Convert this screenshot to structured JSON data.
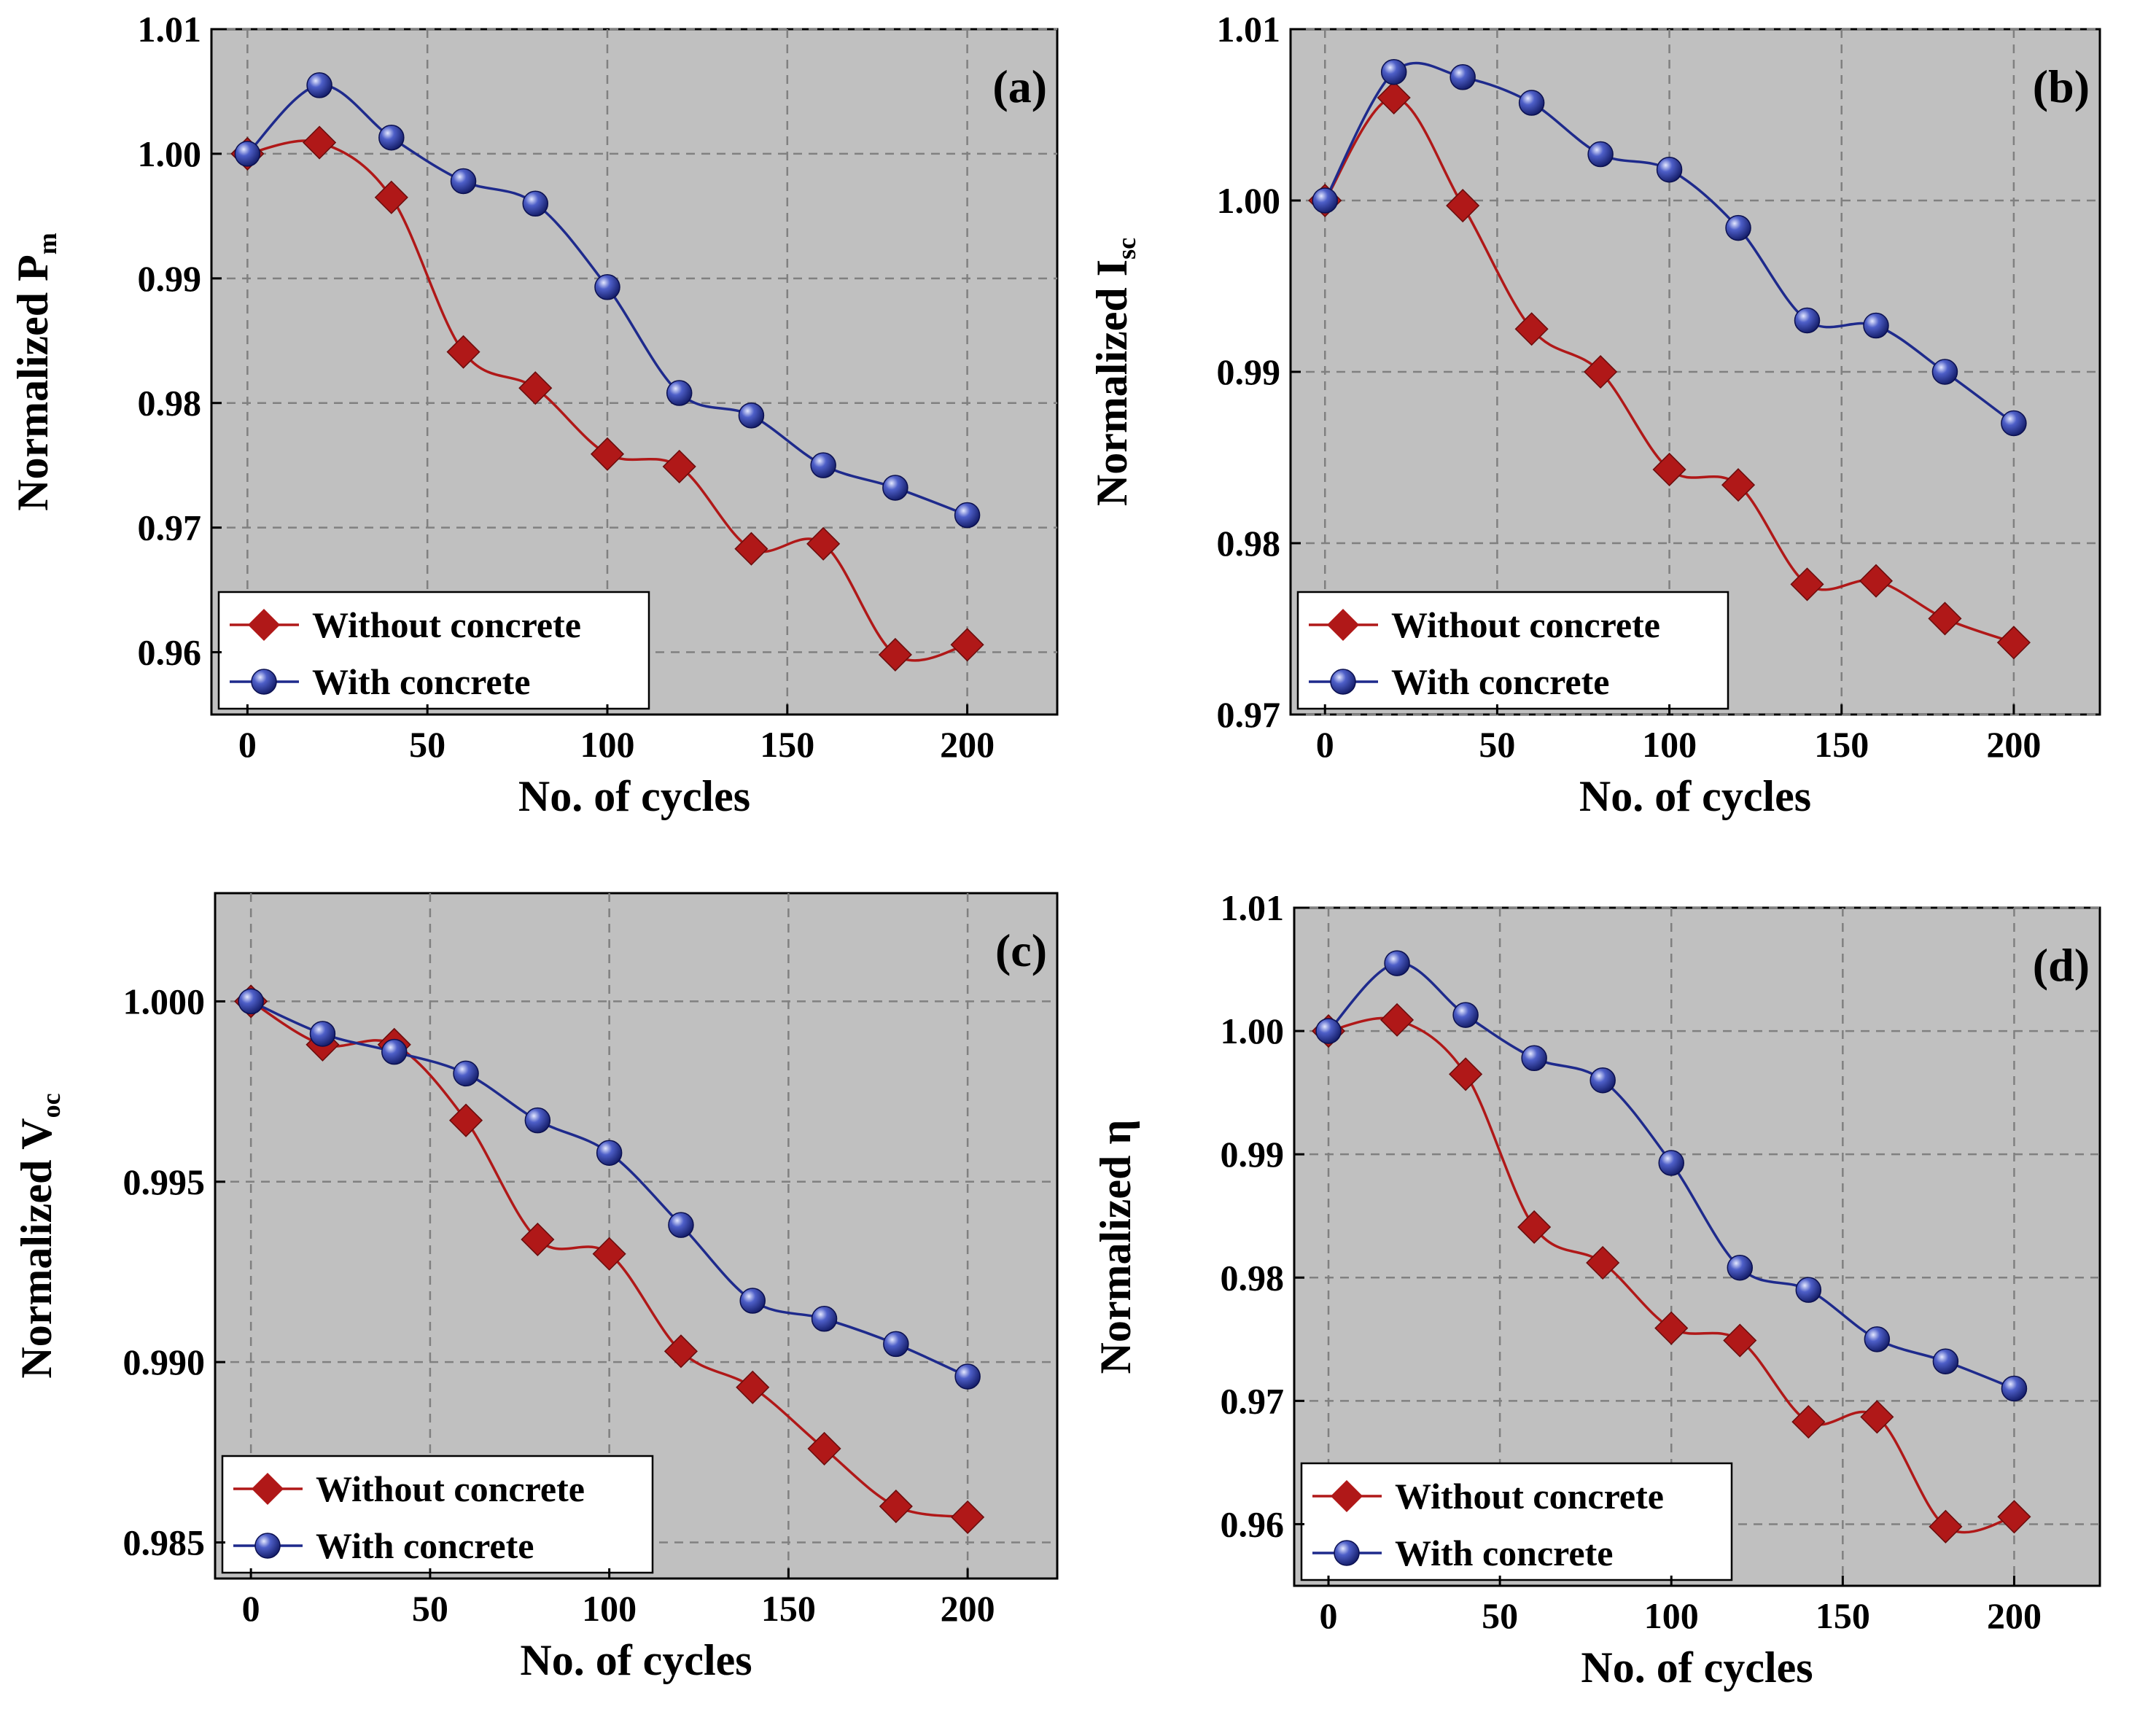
{
  "colors": {
    "plot_background": "#c0c0c0",
    "grid": "#808080",
    "without_series": "#b01818",
    "with_series": "#1e2a8c",
    "legend_background": "#ffffff"
  },
  "chart_data": [
    {
      "type": "line",
      "panel_label": "(a)",
      "xlabel": "No. of cycles",
      "ylabel_main": "Normalized P",
      "ylabel_sub": "m",
      "xlim": [
        -10,
        225
      ],
      "ylim": [
        0.955,
        1.01
      ],
      "xticks": [
        0,
        50,
        100,
        150,
        200
      ],
      "xtick_labels": [
        "0",
        "50",
        "100",
        "150",
        "200"
      ],
      "yticks": [
        0.96,
        0.97,
        0.98,
        0.99,
        1.0,
        1.01
      ],
      "ytick_labels": [
        "0.96",
        "0.97",
        "0.98",
        "0.99",
        "1.00",
        "1.01"
      ],
      "legend": {
        "placement": "bottom-left",
        "entries": [
          "Without concrete",
          "With concrete"
        ]
      },
      "series": [
        {
          "name": "Without concrete",
          "marker": "diamond",
          "x": [
            0,
            20,
            40,
            60,
            80,
            100,
            120,
            140,
            160,
            180,
            200
          ],
          "y": [
            1.0,
            1.0009,
            0.9965,
            0.9841,
            0.9812,
            0.9759,
            0.9749,
            0.9683,
            0.9687,
            0.9598,
            0.9606
          ]
        },
        {
          "name": "With concrete",
          "marker": "sphere",
          "x": [
            0,
            20,
            40,
            60,
            80,
            100,
            120,
            140,
            160,
            180,
            200
          ],
          "y": [
            1.0,
            1.0055,
            1.0013,
            0.9978,
            0.996,
            0.9893,
            0.9808,
            0.979,
            0.975,
            0.9732,
            0.971
          ]
        }
      ]
    },
    {
      "type": "line",
      "panel_label": "(b)",
      "xlabel": "No. of cycles",
      "ylabel_main": "Normalized I",
      "ylabel_sub": "sc",
      "xlim": [
        -10,
        225
      ],
      "ylim": [
        0.97,
        1.01
      ],
      "xticks": [
        0,
        50,
        100,
        150,
        200
      ],
      "xtick_labels": [
        "0",
        "50",
        "100",
        "150",
        "200"
      ],
      "yticks": [
        0.97,
        0.98,
        0.99,
        1.0,
        1.01
      ],
      "ytick_labels": [
        "0.97",
        "0.98",
        "0.99",
        "1.00",
        "1.01"
      ],
      "legend": {
        "placement": "bottom-left",
        "entries": [
          "Without concrete",
          "With concrete"
        ]
      },
      "series": [
        {
          "name": "Without concrete",
          "marker": "diamond",
          "x": [
            0,
            20,
            40,
            60,
            80,
            100,
            120,
            140,
            160,
            180,
            200
          ],
          "y": [
            1.0,
            1.006,
            0.9997,
            0.9925,
            0.99,
            0.9843,
            0.9834,
            0.9776,
            0.9778,
            0.9756,
            0.9742
          ]
        },
        {
          "name": "With concrete",
          "marker": "sphere",
          "x": [
            0,
            20,
            40,
            60,
            80,
            100,
            120,
            140,
            160,
            180,
            200
          ],
          "y": [
            1.0,
            1.0075,
            1.0072,
            1.0057,
            1.0027,
            1.0018,
            0.9984,
            0.993,
            0.9927,
            0.99,
            0.987
          ]
        }
      ]
    },
    {
      "type": "line",
      "panel_label": "(c)",
      "xlabel": "No. of cycles",
      "ylabel_main": "Normalized V",
      "ylabel_sub": "oc",
      "xlim": [
        -10,
        225
      ],
      "ylim": [
        0.984,
        1.003
      ],
      "xticks": [
        0,
        50,
        100,
        150,
        200
      ],
      "xtick_labels": [
        "0",
        "50",
        "100",
        "150",
        "200"
      ],
      "yticks": [
        0.985,
        0.99,
        0.995,
        1.0
      ],
      "ytick_labels": [
        "0.985",
        "0.990",
        "0.995",
        "1.000"
      ],
      "legend": {
        "placement": "bottom-left",
        "entries": [
          "Without concrete",
          "With concrete"
        ]
      },
      "series": [
        {
          "name": "Without concrete",
          "marker": "diamond",
          "x": [
            0,
            20,
            40,
            60,
            80,
            100,
            120,
            140,
            160,
            180,
            200
          ],
          "y": [
            1.0,
            0.9988,
            0.9988,
            0.9967,
            0.9934,
            0.993,
            0.9903,
            0.9893,
            0.9876,
            0.986,
            0.9857
          ]
        },
        {
          "name": "With concrete",
          "marker": "sphere",
          "x": [
            0,
            20,
            40,
            60,
            80,
            100,
            120,
            140,
            160,
            180,
            200
          ],
          "y": [
            1.0,
            0.9991,
            0.9986,
            0.998,
            0.9967,
            0.9958,
            0.9938,
            0.9917,
            0.9912,
            0.9905,
            0.9896
          ]
        }
      ]
    },
    {
      "type": "line",
      "panel_label": "(d)",
      "xlabel": "No. of cycles",
      "ylabel_main": "Normalized η",
      "ylabel_sub": "",
      "xlim": [
        -10,
        225
      ],
      "ylim": [
        0.955,
        1.01
      ],
      "xticks": [
        0,
        50,
        100,
        150,
        200
      ],
      "xtick_labels": [
        "0",
        "50",
        "100",
        "150",
        "200"
      ],
      "yticks": [
        0.96,
        0.97,
        0.98,
        0.99,
        1.0,
        1.01
      ],
      "ytick_labels": [
        "0.96",
        "0.97",
        "0.98",
        "0.99",
        "1.00",
        "1.01"
      ],
      "legend": {
        "placement": "bottom-left",
        "entries": [
          "Without concrete",
          "With concrete"
        ]
      },
      "series": [
        {
          "name": "Without concrete",
          "marker": "diamond",
          "x": [
            0,
            20,
            40,
            60,
            80,
            100,
            120,
            140,
            160,
            180,
            200
          ],
          "y": [
            1.0,
            1.0009,
            0.9965,
            0.9841,
            0.9812,
            0.9759,
            0.9749,
            0.9683,
            0.9687,
            0.9598,
            0.9606
          ]
        },
        {
          "name": "With concrete",
          "marker": "sphere",
          "x": [
            0,
            20,
            40,
            60,
            80,
            100,
            120,
            140,
            160,
            180,
            200
          ],
          "y": [
            1.0,
            1.0055,
            1.0013,
            0.9978,
            0.996,
            0.9893,
            0.9808,
            0.979,
            0.975,
            0.9732,
            0.971
          ]
        }
      ]
    }
  ]
}
